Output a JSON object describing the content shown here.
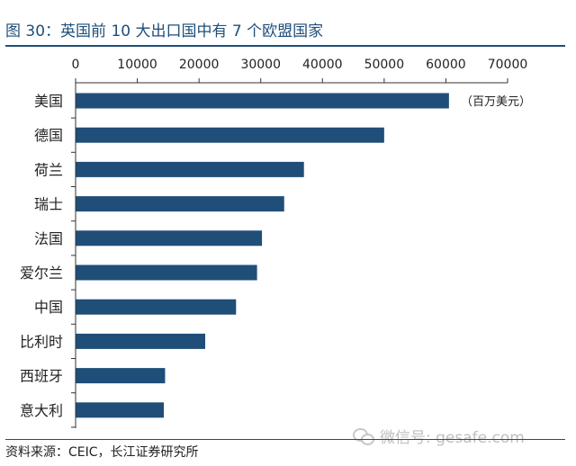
{
  "title": "图  30：英国前 10 大出口国中有 7 个欧盟国家",
  "source": "资料来源：CEIC，长江证券研究所",
  "watermark": "微信号: gesafe.com",
  "colors": {
    "bar": "#1f4e79",
    "title": "#1f4e79",
    "axis": "#333333"
  },
  "chart_data": {
    "type": "bar",
    "orientation": "horizontal",
    "unit_label": "（百万美元）",
    "categories": [
      "美国",
      "德国",
      "荷兰",
      "瑞士",
      "法国",
      "爱尔兰",
      "中国",
      "比利时",
      "西班牙",
      "意大利"
    ],
    "values": [
      60500,
      50000,
      37000,
      33800,
      30200,
      29400,
      26000,
      21000,
      14500,
      14300
    ],
    "xlim": [
      0,
      70000
    ],
    "xticks": [
      0,
      10000,
      20000,
      30000,
      40000,
      50000,
      60000,
      70000
    ],
    "xaxis_position": "top",
    "grid": false,
    "legend": "none"
  }
}
